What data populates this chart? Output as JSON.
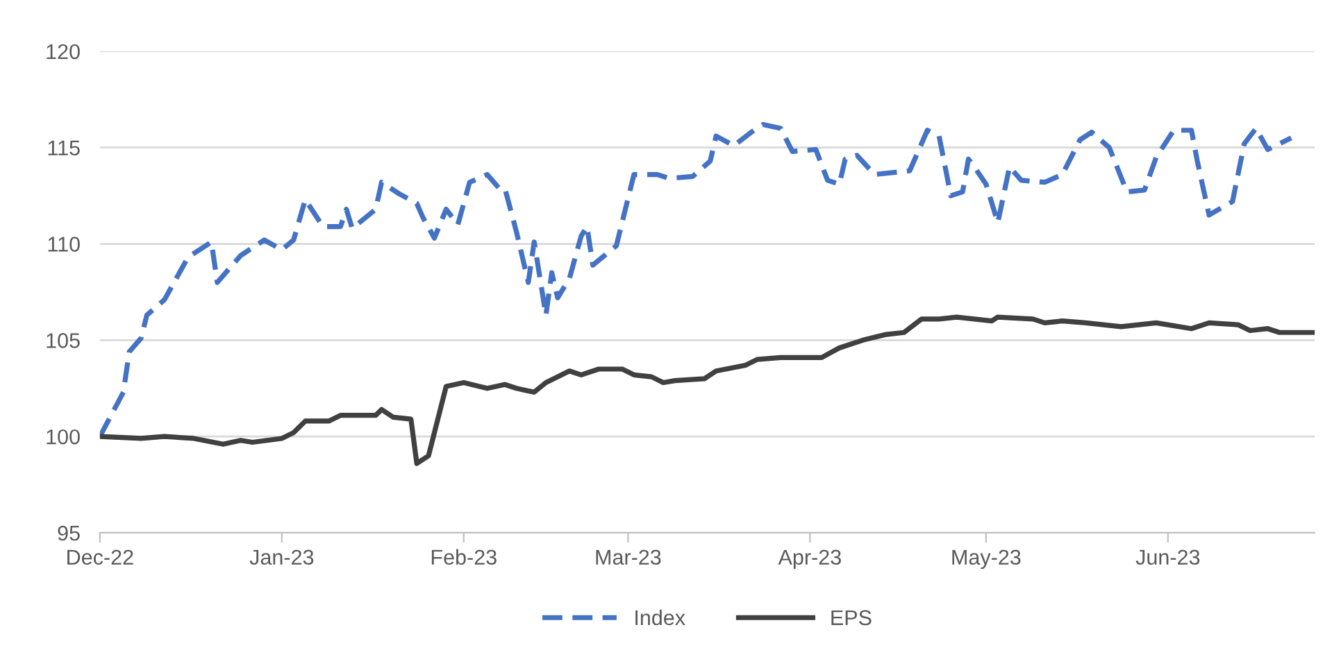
{
  "chart_data": {
    "type": "line",
    "xlim": [
      "2022-12-01",
      "2023-06-26"
    ],
    "ylim": [
      95,
      120
    ],
    "yticks": [
      95,
      100,
      105,
      110,
      115,
      120
    ],
    "xticks": [
      {
        "value": "2022-12-01",
        "label": "Dec-22"
      },
      {
        "value": "2023-01-01",
        "label": "Jan-23"
      },
      {
        "value": "2023-02-01",
        "label": "Feb-23"
      },
      {
        "value": "2023-03-01",
        "label": "Mar-23"
      },
      {
        "value": "2023-04-01",
        "label": "Apr-23"
      },
      {
        "value": "2023-05-01",
        "label": "May-23"
      },
      {
        "value": "2023-06-01",
        "label": "Jun-23"
      }
    ],
    "grid": "y",
    "legend": "bottom",
    "series": [
      {
        "name": "Index",
        "color": "#4472c4",
        "line_style": "dashed",
        "x": [
          "2022-12-01",
          "2022-12-05",
          "2022-12-06",
          "2022-12-08",
          "2022-12-09",
          "2022-12-12",
          "2022-12-16",
          "2022-12-20",
          "2022-12-21",
          "2022-12-25",
          "2022-12-29",
          "2023-01-01",
          "2023-01-03",
          "2023-01-05",
          "2023-01-08",
          "2023-01-11",
          "2023-01-12",
          "2023-01-13",
          "2023-01-17",
          "2023-01-18",
          "2023-01-21",
          "2023-01-24",
          "2023-01-25",
          "2023-01-27",
          "2023-01-29",
          "2023-01-31",
          "2023-02-02",
          "2023-02-05",
          "2023-02-07",
          "2023-02-08",
          "2023-02-10",
          "2023-02-12",
          "2023-02-13",
          "2023-02-15",
          "2023-02-16",
          "2023-02-17",
          "2023-02-19",
          "2023-02-21",
          "2023-02-22",
          "2023-02-23",
          "2023-02-27",
          "2023-03-02",
          "2023-03-06",
          "2023-03-08",
          "2023-03-12",
          "2023-03-15",
          "2023-03-16",
          "2023-03-19",
          "2023-03-22",
          "2023-03-24",
          "2023-03-27",
          "2023-03-29",
          "2023-04-02",
          "2023-04-04",
          "2023-04-06",
          "2023-04-07",
          "2023-04-09",
          "2023-04-12",
          "2023-04-18",
          "2023-04-21",
          "2023-04-23",
          "2023-04-25",
          "2023-04-27",
          "2023-04-28",
          "2023-04-29",
          "2023-05-01",
          "2023-05-03",
          "2023-05-05",
          "2023-05-07",
          "2023-05-11",
          "2023-05-14",
          "2023-05-17",
          "2023-05-19",
          "2023-05-22",
          "2023-05-25",
          "2023-05-28",
          "2023-05-30",
          "2023-06-02",
          "2023-06-05",
          "2023-06-06",
          "2023-06-08",
          "2023-06-12",
          "2023-06-14",
          "2023-06-16",
          "2023-06-18",
          "2023-06-22"
        ],
        "values": [
          100,
          102.3,
          104.4,
          105.1,
          106.3,
          107.1,
          109.3,
          110.1,
          108.0,
          109.4,
          110.2,
          109.7,
          110.2,
          112.3,
          110.9,
          110.9,
          111.8,
          110.8,
          111.8,
          113.2,
          112.6,
          112.1,
          111.4,
          110.3,
          111.8,
          111.0,
          113.2,
          113.6,
          112.9,
          112.9,
          110.6,
          108.0,
          110.1,
          106.3,
          108.5,
          107.2,
          108.2,
          110.4,
          110.9,
          108.9,
          109.9,
          113.6,
          113.6,
          113.4,
          113.5,
          114.3,
          115.6,
          115.1,
          115.8,
          116.2,
          116.0,
          114.8,
          114.9,
          113.3,
          113.1,
          114.4,
          114.6,
          113.6,
          113.8,
          115.9,
          115.6,
          112.5,
          112.7,
          114.4,
          114.0,
          113.1,
          111.1,
          114.0,
          113.3,
          113.2,
          113.6,
          115.4,
          115.8,
          115.0,
          112.7,
          112.8,
          114.5,
          115.9,
          115.9,
          114.3,
          111.5,
          112.2,
          115.2,
          116.0,
          114.9,
          115.5
        ]
      },
      {
        "name": "EPS",
        "color": "#404040",
        "line_style": "solid",
        "x": [
          "2022-12-01",
          "2022-12-08",
          "2022-12-12",
          "2022-12-17",
          "2022-12-22",
          "2022-12-25",
          "2022-12-27",
          "2023-01-01",
          "2023-01-03",
          "2023-01-05",
          "2023-01-09",
          "2023-01-11",
          "2023-01-17",
          "2023-01-18",
          "2023-01-20",
          "2023-01-23",
          "2023-01-24",
          "2023-01-26",
          "2023-01-29",
          "2023-02-01",
          "2023-02-05",
          "2023-02-08",
          "2023-02-10",
          "2023-02-13",
          "2023-02-15",
          "2023-02-19",
          "2023-02-21",
          "2023-02-24",
          "2023-02-28",
          "2023-03-02",
          "2023-03-05",
          "2023-03-07",
          "2023-03-09",
          "2023-03-14",
          "2023-03-16",
          "2023-03-21",
          "2023-03-23",
          "2023-03-27",
          "2023-04-03",
          "2023-04-06",
          "2023-04-10",
          "2023-04-14",
          "2023-04-17",
          "2023-04-20",
          "2023-04-23",
          "2023-04-26",
          "2023-05-02",
          "2023-05-03",
          "2023-05-09",
          "2023-05-11",
          "2023-05-14",
          "2023-05-18",
          "2023-05-24",
          "2023-05-30",
          "2023-06-05",
          "2023-06-08",
          "2023-06-13",
          "2023-06-15",
          "2023-06-18",
          "2023-06-20",
          "2023-06-26"
        ],
        "values": [
          100,
          99.9,
          100.0,
          99.9,
          99.6,
          99.8,
          99.7,
          99.9,
          100.2,
          100.8,
          100.8,
          101.1,
          101.1,
          101.4,
          101.0,
          100.9,
          98.6,
          99.0,
          102.6,
          102.8,
          102.5,
          102.7,
          102.5,
          102.3,
          102.8,
          103.4,
          103.2,
          103.5,
          103.5,
          103.2,
          103.1,
          102.8,
          102.9,
          103.0,
          103.4,
          103.7,
          104.0,
          104.1,
          104.1,
          104.6,
          105.0,
          105.3,
          105.4,
          106.1,
          106.1,
          106.2,
          106.0,
          106.2,
          106.1,
          105.9,
          106.0,
          105.9,
          105.7,
          105.9,
          105.6,
          105.9,
          105.8,
          105.5,
          105.6,
          105.4,
          105.4
        ]
      }
    ]
  }
}
